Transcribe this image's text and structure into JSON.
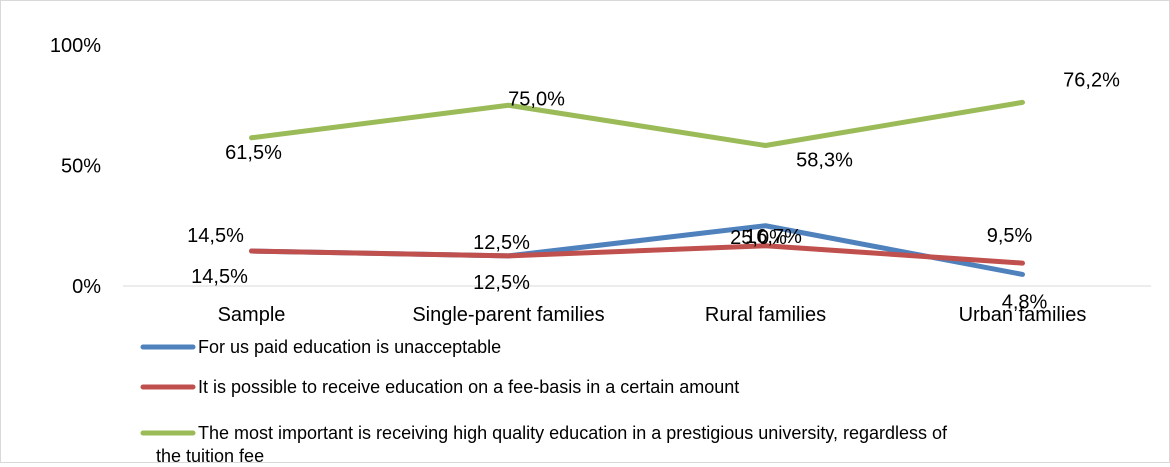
{
  "chart_data": {
    "type": "line",
    "categories": [
      "Sample",
      "Single-parent families",
      "Rural families",
      "Urban families"
    ],
    "yticks": [
      "100%",
      "50%",
      "0%"
    ],
    "ylim": [
      0,
      100
    ],
    "grid": false,
    "legend_position": "bottom",
    "series": [
      {
        "name": "For us paid education is unacceptable",
        "color": "#4f81bd",
        "values": [
          14.5,
          12.5,
          25.0,
          4.8
        ],
        "labels": [
          "14,5%",
          "12,5%",
          "25,0%",
          "4,8%"
        ]
      },
      {
        "name": "It is possible to receive education on a fee-basis in a certain amount",
        "color": "#c0504d",
        "values": [
          14.5,
          12.5,
          16.7,
          9.5
        ],
        "labels": [
          "14,5%",
          "12,5%",
          "16,7%",
          "9,5%"
        ]
      },
      {
        "name": "The most important is receiving high quality education in a prestigious university, regardless of the tuition fee",
        "color": "#9bbb59",
        "values": [
          61.5,
          75.0,
          58.3,
          76.2
        ],
        "labels": [
          "61,5%",
          "75,0%",
          "58,3%",
          "76,2%"
        ]
      }
    ],
    "legend_lines": [
      [
        "For us paid education is unacceptable"
      ],
      [
        "It is possible to receive education on a fee-basis in a certain amount"
      ],
      [
        "The most important is receiving high quality education in a prestigious university, regardless of",
        "the tuition fee"
      ]
    ]
  }
}
